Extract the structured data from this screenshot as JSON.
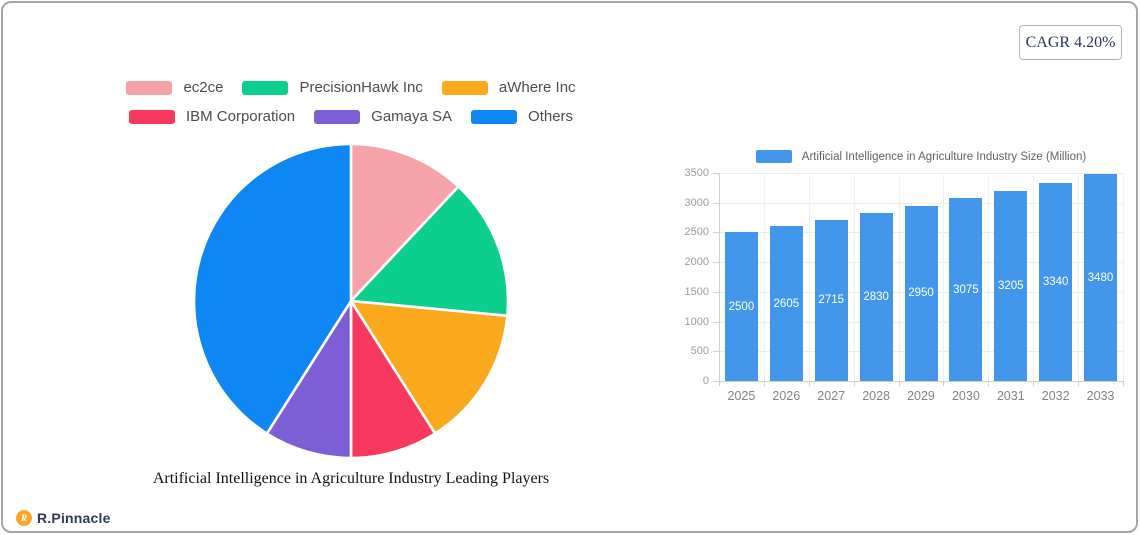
{
  "cagr_label": "CAGR 4.20%",
  "brand_name": "R.Pinnacle",
  "chart_data": [
    {
      "type": "pie",
      "title": "Artificial Intelligence in Agriculture Industry Leading Players",
      "legend_position": "top",
      "start_angle_deg": 0,
      "direction": "clockwise",
      "unit": "% share (estimated from arc angles)",
      "segments": [
        {
          "label": "ec2ce",
          "value": 12,
          "color": "#F5A2A9"
        },
        {
          "label": "PrecisionHawk Inc",
          "value": 14.5,
          "color": "#0CCF8D"
        },
        {
          "label": "aWhere Inc",
          "value": 14.5,
          "color": "#FAA81C"
        },
        {
          "label": "IBM Corporation",
          "value": 9,
          "color": "#F8395F"
        },
        {
          "label": "Gamaya SA",
          "value": 9,
          "color": "#7E5ED4"
        },
        {
          "label": "Others",
          "value": 41,
          "color": "#0E86F4"
        }
      ]
    },
    {
      "type": "bar",
      "legend_label": "Artificial Intelligence in Agriculture Industry Size (Million)",
      "legend_position": "top",
      "categories": [
        "2025",
        "2026",
        "2027",
        "2028",
        "2029",
        "2030",
        "2031",
        "2032",
        "2033"
      ],
      "values": [
        2500,
        2605,
        2715,
        2830,
        2950,
        3075,
        3205,
        3340,
        3480
      ],
      "bar_color": "#4297EB",
      "value_label_color": "#ffffff",
      "ylabel": "",
      "xlabel": "",
      "ylim": [
        0,
        3500
      ],
      "ytick_step": 500,
      "grid": true
    }
  ]
}
